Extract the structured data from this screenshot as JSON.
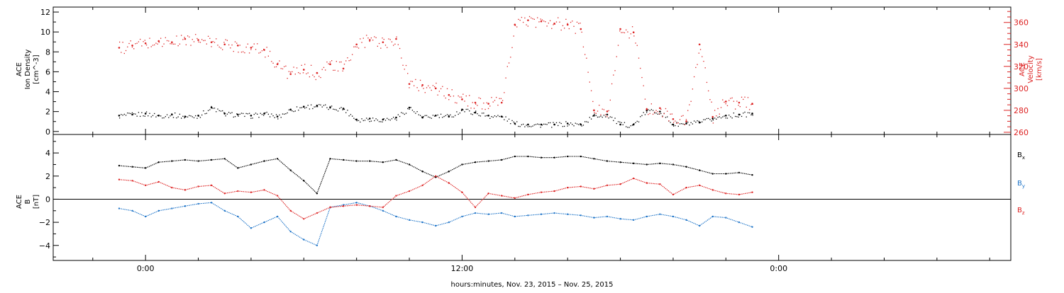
{
  "chart_data": [
    {
      "type": "scatter",
      "panel": "top",
      "x_unit": "hours since 0:00",
      "xlim": [
        -3.5,
        32.8
      ],
      "left_axis": {
        "label_lines": [
          "ACE",
          "Ion Density",
          "[cm^-3]"
        ],
        "ylim": [
          -0.3,
          12.5
        ],
        "ticks": [
          0,
          2,
          4,
          6,
          8,
          10,
          12
        ],
        "tick_labels": [
          "0",
          "2",
          "4",
          "6",
          "8",
          "10",
          "12"
        ],
        "color": "#000000"
      },
      "right_axis": {
        "label_lines": [
          "ACE",
          "Velocity",
          "[km/s]"
        ],
        "ylim": [
          258,
          374
        ],
        "ticks": [
          260,
          280,
          300,
          320,
          340,
          360
        ],
        "tick_labels": [
          "260",
          "280",
          "300",
          "320",
          "340",
          "360"
        ],
        "color": "#dd2222"
      },
      "series": [
        {
          "axis": "left",
          "color": "#000000",
          "x": [
            -1.0,
            -0.5,
            0.0,
            0.5,
            1.0,
            1.5,
            2.0,
            2.5,
            3.0,
            3.5,
            4.0,
            4.5,
            5.0,
            5.5,
            6.0,
            6.5,
            7.0,
            7.5,
            8.0,
            8.5,
            9.0,
            9.5,
            10.0,
            10.5,
            11.0,
            11.5,
            12.0,
            12.5,
            13.0,
            13.5,
            14.0,
            14.5,
            15.0,
            15.5,
            16.0,
            16.5,
            17.0,
            17.5,
            18.0,
            18.5,
            19.0,
            19.5,
            20.0,
            20.5,
            21.0,
            21.5,
            22.0,
            22.5,
            23.0
          ],
          "y": [
            1.6,
            1.7,
            1.8,
            1.6,
            1.7,
            1.5,
            1.6,
            2.4,
            1.8,
            1.7,
            1.6,
            1.8,
            1.5,
            2.2,
            2.5,
            2.6,
            2.4,
            2.3,
            1.2,
            1.3,
            1.2,
            1.4,
            2.4,
            1.4,
            1.6,
            1.5,
            2.2,
            1.9,
            1.6,
            1.5,
            0.8,
            0.7,
            0.7,
            0.7,
            0.8,
            0.7,
            1.6,
            1.7,
            0.7,
            0.7,
            2.1,
            2.0,
            0.7,
            0.8,
            0.9,
            1.3,
            1.6,
            1.7,
            1.8
          ]
        },
        {
          "axis": "right",
          "color": "#dd2222",
          "x": [
            -1.0,
            -0.5,
            0.0,
            0.5,
            1.0,
            1.5,
            2.0,
            2.5,
            3.0,
            3.5,
            4.0,
            4.5,
            5.0,
            5.5,
            6.0,
            6.5,
            7.0,
            7.5,
            8.0,
            8.5,
            9.0,
            9.5,
            10.0,
            10.5,
            11.0,
            11.5,
            12.0,
            12.5,
            13.0,
            13.5,
            14.0,
            14.5,
            15.0,
            15.5,
            16.0,
            16.5,
            17.0,
            17.5,
            18.0,
            18.5,
            19.0,
            19.5,
            20.0,
            20.5,
            21.0,
            21.5,
            22.0,
            22.5,
            23.0
          ],
          "y": [
            337,
            339,
            341,
            343,
            342,
            345,
            344,
            342,
            340,
            339,
            337,
            335,
            322,
            313,
            317,
            314,
            322,
            318,
            340,
            344,
            342,
            345,
            304,
            303,
            300,
            294,
            290,
            287,
            286,
            287,
            358,
            362,
            361,
            359,
            358,
            354,
            280,
            279,
            354,
            351,
            281,
            282,
            272,
            270,
            340,
            274,
            288,
            287,
            286
          ]
        }
      ]
    },
    {
      "type": "line",
      "panel": "bottom",
      "x_unit": "hours since 0:00",
      "xlim": [
        -3.5,
        32.8
      ],
      "xtick_labels": [
        "0:00",
        "12:00",
        "0:00"
      ],
      "xlabel": "hours:minutes, Nov. 23, 2015 – Nov. 25, 2015",
      "ylabel_lines": [
        "ACE",
        "B",
        "[nT]"
      ],
      "ylim": [
        -5.3,
        5.6
      ],
      "ticks": [
        -4,
        -2,
        0,
        2,
        4
      ],
      "tick_labels": [
        "−4",
        "−2",
        "0",
        "2",
        "4"
      ],
      "series": [
        {
          "name": "Bx",
          "color": "#000000",
          "x": [
            -1.0,
            -0.5,
            0.0,
            0.5,
            1.0,
            1.5,
            2.0,
            2.5,
            3.0,
            3.5,
            4.0,
            4.5,
            5.0,
            5.5,
            6.0,
            6.5,
            7.0,
            7.5,
            8.0,
            8.5,
            9.0,
            9.5,
            10.0,
            10.5,
            11.0,
            11.5,
            12.0,
            12.5,
            13.0,
            13.5,
            14.0,
            14.5,
            15.0,
            15.5,
            16.0,
            16.5,
            17.0,
            17.5,
            18.0,
            18.5,
            19.0,
            19.5,
            20.0,
            20.5,
            21.0,
            21.5,
            22.0,
            22.5,
            23.0
          ],
          "y": [
            2.9,
            2.8,
            2.7,
            3.2,
            3.3,
            3.4,
            3.3,
            3.4,
            3.5,
            2.7,
            3.0,
            3.3,
            3.5,
            2.5,
            1.6,
            0.5,
            3.5,
            3.4,
            3.3,
            3.3,
            3.2,
            3.4,
            3.0,
            2.4,
            1.9,
            2.4,
            3.0,
            3.2,
            3.3,
            3.4,
            3.7,
            3.7,
            3.6,
            3.6,
            3.7,
            3.7,
            3.5,
            3.3,
            3.2,
            3.1,
            3.0,
            3.1,
            3.0,
            2.8,
            2.5,
            2.2,
            2.2,
            2.3,
            2.1
          ]
        },
        {
          "name": "By",
          "color": "#1e74c8",
          "x": [
            -1.0,
            -0.5,
            0.0,
            0.5,
            1.0,
            1.5,
            2.0,
            2.5,
            3.0,
            3.5,
            4.0,
            4.5,
            5.0,
            5.5,
            6.0,
            6.5,
            7.0,
            7.5,
            8.0,
            8.5,
            9.0,
            9.5,
            10.0,
            10.5,
            11.0,
            11.5,
            12.0,
            12.5,
            13.0,
            13.5,
            14.0,
            14.5,
            15.0,
            15.5,
            16.0,
            16.5,
            17.0,
            17.5,
            18.0,
            18.5,
            19.0,
            19.5,
            20.0,
            20.5,
            21.0,
            21.5,
            22.0,
            22.5,
            23.0
          ],
          "y": [
            -0.8,
            -1.0,
            -1.5,
            -1.0,
            -0.8,
            -0.6,
            -0.4,
            -0.3,
            -1.0,
            -1.5,
            -2.5,
            -2.0,
            -1.5,
            -2.8,
            -3.5,
            -4.0,
            -0.7,
            -0.5,
            -0.3,
            -0.6,
            -1.0,
            -1.5,
            -1.8,
            -2.0,
            -2.3,
            -2.0,
            -1.5,
            -1.2,
            -1.3,
            -1.2,
            -1.5,
            -1.4,
            -1.3,
            -1.2,
            -1.3,
            -1.4,
            -1.6,
            -1.5,
            -1.7,
            -1.8,
            -1.5,
            -1.3,
            -1.5,
            -1.8,
            -2.3,
            -1.5,
            -1.6,
            -2.0,
            -2.4
          ]
        },
        {
          "name": "Bz",
          "color": "#dd2222",
          "x": [
            -1.0,
            -0.5,
            0.0,
            0.5,
            1.0,
            1.5,
            2.0,
            2.5,
            3.0,
            3.5,
            4.0,
            4.5,
            5.0,
            5.5,
            6.0,
            6.5,
            7.0,
            7.5,
            8.0,
            8.5,
            9.0,
            9.5,
            10.0,
            10.5,
            11.0,
            11.5,
            12.0,
            12.5,
            13.0,
            13.5,
            14.0,
            14.5,
            15.0,
            15.5,
            16.0,
            16.5,
            17.0,
            17.5,
            18.0,
            18.5,
            19.0,
            19.5,
            20.0,
            20.5,
            21.0,
            21.5,
            22.0,
            22.5,
            23.0
          ],
          "y": [
            1.7,
            1.6,
            1.2,
            1.5,
            1.0,
            0.8,
            1.1,
            1.2,
            0.5,
            0.7,
            0.6,
            0.8,
            0.3,
            -1.0,
            -1.7,
            -1.2,
            -0.7,
            -0.6,
            -0.5,
            -0.6,
            -0.7,
            0.3,
            0.7,
            1.2,
            2.0,
            1.4,
            0.6,
            -0.7,
            0.5,
            0.3,
            0.1,
            0.4,
            0.6,
            0.7,
            1.0,
            1.1,
            0.9,
            1.2,
            1.3,
            1.8,
            1.4,
            1.3,
            0.4,
            1.0,
            1.2,
            0.8,
            0.5,
            0.4,
            0.6
          ]
        }
      ],
      "legend": [
        {
          "text": "B",
          "sub": "x",
          "color": "#000000"
        },
        {
          "text": "B",
          "sub": "y",
          "color": "#1e74c8"
        },
        {
          "text": "B",
          "sub": "z",
          "color": "#dd2222"
        }
      ]
    }
  ]
}
